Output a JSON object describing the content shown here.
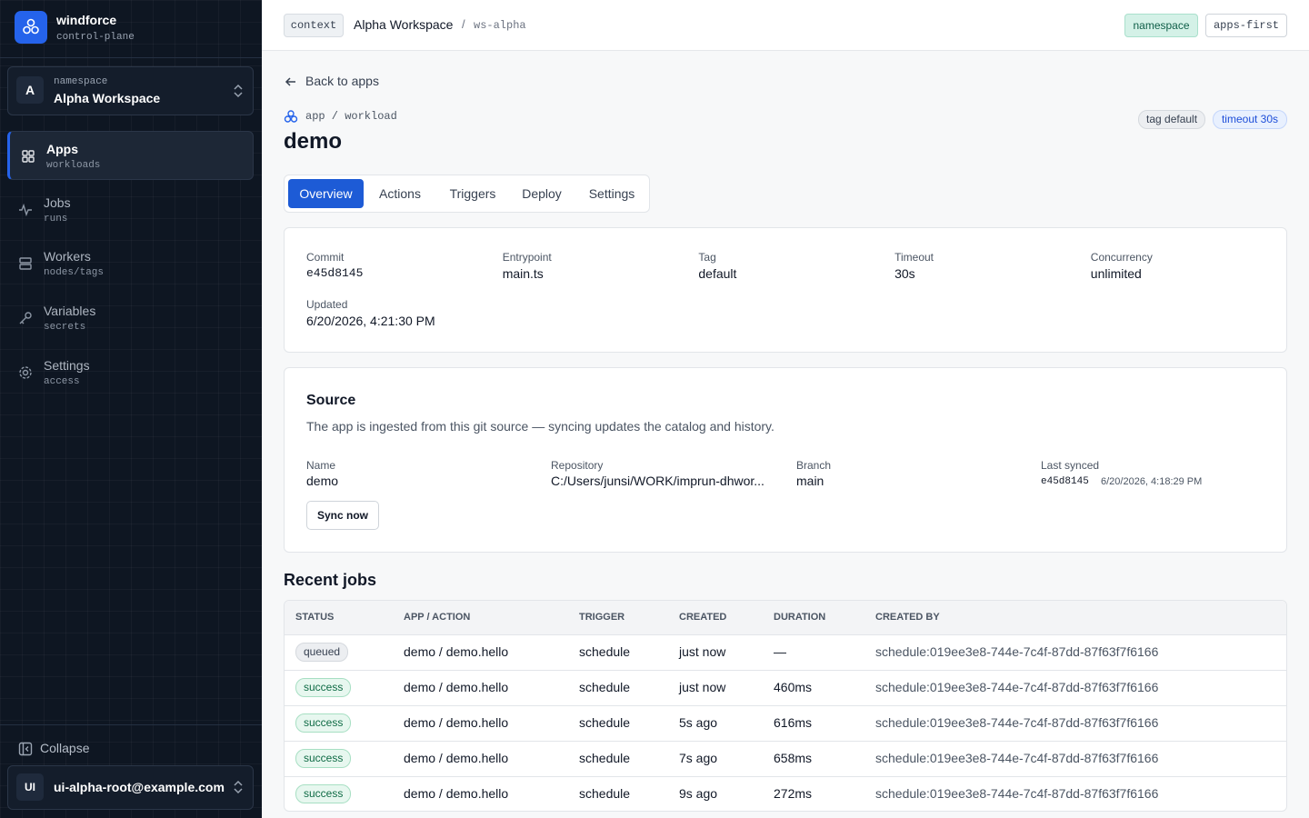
{
  "sidebar": {
    "brand": {
      "name": "windforce",
      "sub": "control-plane"
    },
    "workspace": {
      "avatar": "A",
      "label": "namespace",
      "name": "Alpha Workspace"
    },
    "nav": [
      {
        "label": "Apps",
        "sub": "workloads",
        "active": true
      },
      {
        "label": "Jobs",
        "sub": "runs",
        "active": false
      },
      {
        "label": "Workers",
        "sub": "nodes/tags",
        "active": false
      },
      {
        "label": "Variables",
        "sub": "secrets",
        "active": false
      },
      {
        "label": "Settings",
        "sub": "access",
        "active": false
      }
    ],
    "collapse": "Collapse",
    "user": {
      "avatar": "UI",
      "email": "ui-alpha-root@example.com"
    }
  },
  "topbar": {
    "context": "context",
    "workspace": "Alpha Workspace",
    "separator": "/",
    "slug": "ws-alpha",
    "badges": [
      "namespace",
      "apps-first"
    ]
  },
  "back": "Back to apps",
  "app": {
    "breadcrumb": "app / workload",
    "title": "demo",
    "badges": [
      "tag default",
      "timeout 30s"
    ]
  },
  "tabs": [
    {
      "label": "Overview",
      "active": true
    },
    {
      "label": "Actions",
      "active": false
    },
    {
      "label": "Triggers",
      "active": false
    },
    {
      "label": "Deploy",
      "active": false
    },
    {
      "label": "Settings",
      "active": false
    }
  ],
  "details": [
    {
      "label": "Commit",
      "value": "e45d8145",
      "mono": true
    },
    {
      "label": "Entrypoint",
      "value": "main.ts",
      "mono": false
    },
    {
      "label": "Tag",
      "value": "default",
      "mono": false
    },
    {
      "label": "Timeout",
      "value": "30s",
      "mono": false
    },
    {
      "label": "Concurrency",
      "value": "unlimited",
      "mono": false
    },
    {
      "label": "Updated",
      "value": "6/20/2026, 4:21:30 PM",
      "mono": false
    }
  ],
  "source": {
    "title": "Source",
    "description": "The app is ingested from this git source — syncing updates the catalog and history.",
    "fields": [
      {
        "label": "Name",
        "value": "demo"
      },
      {
        "label": "Repository",
        "value": "C:/Users/junsi/WORK/imprun-dhwor..."
      },
      {
        "label": "Branch",
        "value": "main"
      }
    ],
    "last_synced": {
      "label": "Last synced",
      "commit": "e45d8145",
      "time": "6/20/2026, 4:18:29 PM"
    },
    "button": "Sync now"
  },
  "jobs": {
    "title": "Recent jobs",
    "columns": [
      "STATUS",
      "APP / ACTION",
      "TRIGGER",
      "CREATED",
      "DURATION",
      "CREATED BY"
    ],
    "rows": [
      [
        "queued",
        "demo / demo.hello",
        "schedule",
        "just now",
        "—",
        "schedule:019ee3e8-744e-7c4f-87dd-87f63f7f6166"
      ],
      [
        "success",
        "demo / demo.hello",
        "schedule",
        "just now",
        "460ms",
        "schedule:019ee3e8-744e-7c4f-87dd-87f63f7f6166"
      ],
      [
        "success",
        "demo / demo.hello",
        "schedule",
        "5s ago",
        "616ms",
        "schedule:019ee3e8-744e-7c4f-87dd-87f63f7f6166"
      ],
      [
        "success",
        "demo / demo.hello",
        "schedule",
        "7s ago",
        "658ms",
        "schedule:019ee3e8-744e-7c4f-87dd-87f63f7f6166"
      ],
      [
        "success",
        "demo / demo.hello",
        "schedule",
        "9s ago",
        "272ms",
        "schedule:019ee3e8-744e-7c4f-87dd-87f63f7f6166"
      ]
    ]
  }
}
